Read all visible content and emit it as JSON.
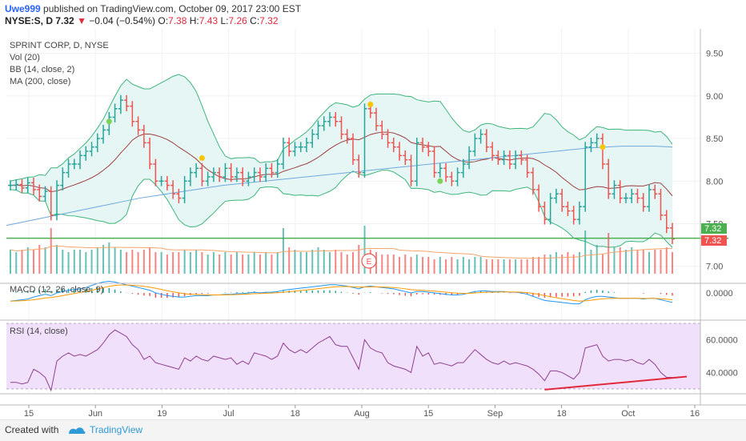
{
  "header": {
    "author": "Uwe999",
    "published_text": "published on TradingView.com, October 09, 2017 23:00 EST",
    "symbol": "NYSE:S, D",
    "last": "7.32",
    "change": "−0.04 (−0.54%)",
    "open_label": "O:",
    "open": "7.38",
    "high_label": "H:",
    "high": "7.43",
    "low_label": "L:",
    "low": "7.26",
    "close_label": "C:",
    "close": "7.32"
  },
  "legend": {
    "title": "SPRINT CORP, D, NYSE",
    "vol": "Vol (20)",
    "bb": "BB (14, close, 2)",
    "ma": "MA (200, close)",
    "macd": "MACD (12, 26, close, 9)",
    "rsi": "RSI (14, close)"
  },
  "earnings_marker": "E",
  "footer": {
    "created_with": "Created with",
    "brand": "TradingView"
  },
  "colors": {
    "up": "#26a69a",
    "down": "#ef5350",
    "bb_band": "#3db57a",
    "bb_fill": "#e6f6f5",
    "bb_basis": "#9e3f3f",
    "ma": "#6fa8dc",
    "hline": "#4caf50",
    "macd": "#2196f3",
    "signal": "#ff9800",
    "rsi": "#8e3f8e",
    "rsi_fill": "#f1e0fb",
    "trend": "#e0293c",
    "vol_ma": "#f6a56b",
    "green_dot": "#7cd35a",
    "yellow_dot": "#f6c700"
  },
  "chart_data": {
    "type": "line",
    "price_axis": {
      "ylim": [
        6.8,
        9.75
      ],
      "ticks": [
        "9.50",
        "9.00",
        "8.50",
        "8.00",
        "7.50",
        "7.00"
      ]
    },
    "x_ticks": [
      "15",
      "Jun",
      "19",
      "Jul",
      "18",
      "Aug",
      "15",
      "Sep",
      "18",
      "Oct",
      "16"
    ],
    "last_price_label": "7.32",
    "close_label": "7.32",
    "horizontal_line": 7.33,
    "macd_axis": {
      "ticks": [
        "0.0000"
      ]
    },
    "rsi_axis": {
      "ylim": [
        27,
        72
      ],
      "ticks": [
        "60.0000",
        "40.0000"
      ],
      "band": [
        30,
        70
      ]
    },
    "close_series": [
      7.95,
      7.96,
      7.92,
      7.98,
      7.9,
      7.82,
      7.88,
      7.6,
      7.95,
      8.1,
      8.2,
      8.2,
      8.3,
      8.35,
      8.4,
      8.5,
      8.6,
      8.75,
      8.85,
      8.95,
      8.88,
      8.7,
      8.6,
      8.45,
      8.2,
      8.0,
      8.0,
      7.95,
      7.85,
      7.8,
      8.0,
      8.1,
      8.15,
      8.0,
      8.05,
      8.1,
      8.05,
      8.15,
      8.05,
      8.1,
      8.0,
      8.05,
      8.1,
      8.05,
      8.15,
      8.1,
      8.2,
      8.45,
      8.35,
      8.4,
      8.4,
      8.45,
      8.55,
      8.65,
      8.7,
      8.75,
      8.7,
      8.55,
      8.5,
      8.25,
      8.1,
      8.85,
      8.8,
      8.65,
      8.55,
      8.45,
      8.4,
      8.3,
      8.25,
      8.0,
      8.45,
      8.4,
      8.35,
      8.1,
      8.15,
      8.05,
      8.0,
      8.1,
      8.2,
      8.35,
      8.5,
      8.55,
      8.4,
      8.3,
      8.25,
      8.3,
      8.2,
      8.3,
      8.25,
      8.1,
      7.9,
      7.7,
      7.55,
      7.8,
      7.85,
      7.7,
      7.65,
      7.55,
      7.7,
      8.4,
      8.45,
      8.5,
      8.2,
      7.85,
      7.95,
      7.8,
      7.8,
      7.85,
      7.8,
      7.7,
      7.9,
      7.85,
      7.6,
      7.45,
      7.32
    ],
    "ma200_series": [
      7.48,
      7.52,
      7.56,
      7.6,
      7.64,
      7.68,
      7.72,
      7.76,
      7.8,
      7.83,
      7.86,
      7.89,
      7.92,
      7.95,
      7.97,
      7.99,
      8.01,
      8.03,
      8.05,
      8.07,
      8.09,
      8.11,
      8.13,
      8.15,
      8.17,
      8.19,
      8.21,
      8.23,
      8.25,
      8.27,
      8.29,
      8.31,
      8.33,
      8.35,
      8.37,
      8.39,
      8.4,
      8.41,
      8.41,
      8.41,
      8.4
    ],
    "rsi_series": [
      34,
      34,
      33,
      34,
      42,
      40,
      37,
      29,
      47,
      50,
      52,
      50,
      51,
      50,
      52,
      54,
      58,
      63,
      66,
      64,
      62,
      57,
      54,
      48,
      50,
      46,
      45,
      44,
      43,
      42,
      49,
      47,
      50,
      48,
      47,
      50,
      49,
      48,
      49,
      45,
      47,
      45,
      52,
      51,
      50,
      48,
      50,
      58,
      54,
      52,
      54,
      52,
      55,
      58,
      60,
      62,
      57,
      56,
      56,
      49,
      42,
      60,
      55,
      53,
      52,
      46,
      44,
      43,
      42,
      40,
      56,
      50,
      52,
      45,
      46,
      45,
      44,
      46,
      46,
      50,
      54,
      51,
      48,
      46,
      45,
      47,
      45,
      46,
      45,
      44,
      42,
      39,
      35,
      41,
      41,
      40,
      38,
      36,
      40,
      55,
      56,
      57,
      50,
      47,
      48,
      48,
      47,
      48,
      46,
      45,
      48,
      45,
      40,
      37,
      37
    ],
    "macd_series": [
      -0.06,
      -0.055,
      -0.05,
      -0.045,
      -0.03,
      -0.02,
      -0.01,
      -0.02,
      0.0,
      0.01,
      0.02,
      0.025,
      0.03,
      0.04,
      0.055,
      0.07,
      0.08,
      0.085,
      0.08,
      0.07,
      0.06,
      0.05,
      0.04,
      0.03,
      0.02,
      0.0,
      -0.01,
      -0.02,
      -0.025,
      -0.03,
      -0.03,
      -0.025,
      -0.02,
      -0.02,
      -0.02,
      -0.015,
      -0.015,
      -0.01,
      -0.01,
      -0.005,
      -0.005,
      0.0,
      0.005,
      0.0,
      0.005,
      0.005,
      0.01,
      0.02,
      0.025,
      0.03,
      0.035,
      0.04,
      0.045,
      0.05,
      0.055,
      0.06,
      0.06,
      0.055,
      0.05,
      0.04,
      0.03,
      0.045,
      0.05,
      0.045,
      0.04,
      0.035,
      0.03,
      0.02,
      0.01,
      0.0,
      0.01,
      0.01,
      0.005,
      0.0,
      -0.005,
      -0.01,
      -0.015,
      -0.015,
      -0.01,
      0.0,
      0.01,
      0.015,
      0.015,
      0.01,
      0.01,
      0.01,
      0.005,
      0.005,
      0.0,
      -0.01,
      -0.025,
      -0.04,
      -0.055,
      -0.06,
      -0.065,
      -0.07,
      -0.075,
      -0.08,
      -0.08,
      -0.05,
      -0.035,
      -0.025,
      -0.025,
      -0.03,
      -0.035,
      -0.04,
      -0.04,
      -0.04,
      -0.04,
      -0.045,
      -0.04,
      -0.04,
      -0.05,
      -0.06,
      -0.07
    ],
    "volume_series": [
      0.5,
      0.45,
      0.5,
      0.55,
      0.5,
      0.6,
      0.55,
      0.95,
      0.6,
      0.5,
      0.45,
      0.5,
      0.5,
      0.45,
      0.5,
      0.55,
      0.6,
      0.65,
      0.55,
      0.5,
      0.45,
      0.5,
      0.45,
      0.5,
      0.55,
      0.45,
      0.45,
      0.4,
      0.45,
      0.45,
      0.5,
      0.45,
      0.5,
      0.45,
      0.4,
      0.45,
      0.4,
      0.45,
      0.4,
      0.45,
      0.4,
      0.4,
      0.45,
      0.4,
      0.45,
      0.4,
      0.45,
      0.95,
      0.55,
      0.5,
      0.45,
      0.45,
      0.5,
      0.55,
      0.5,
      0.45,
      0.5,
      0.45,
      0.4,
      0.45,
      0.6,
      1.0,
      0.5,
      0.45,
      0.4,
      0.4,
      0.4,
      0.35,
      0.4,
      0.35,
      0.4,
      0.35,
      0.35,
      0.3,
      0.35,
      0.3,
      0.35,
      0.3,
      0.35,
      0.3,
      0.35,
      0.35,
      0.3,
      0.3,
      0.3,
      0.3,
      0.3,
      0.3,
      0.3,
      0.3,
      0.35,
      0.35,
      0.4,
      0.4,
      0.45,
      0.4,
      0.45,
      0.4,
      0.45,
      0.9,
      0.5,
      0.6,
      0.4,
      0.85,
      0.55,
      0.55,
      0.5,
      0.55,
      0.5,
      0.5,
      0.45,
      0.5,
      0.5,
      0.55,
      0.45
    ]
  }
}
